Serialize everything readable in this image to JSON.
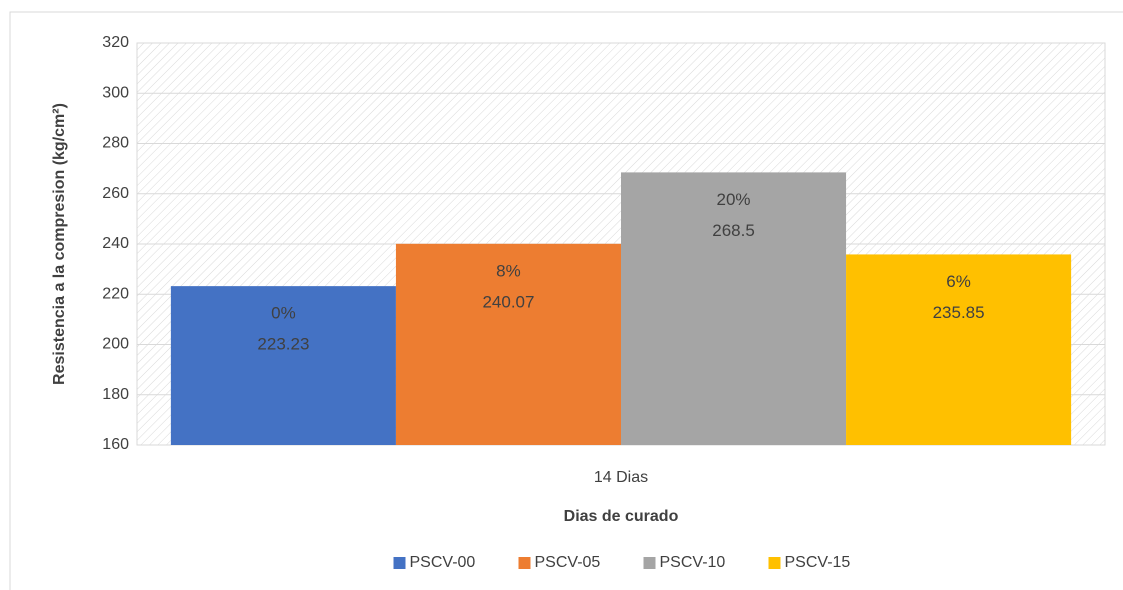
{
  "chart_data": {
    "type": "bar",
    "categories": [
      "14 Dias"
    ],
    "x_label": "Dias de curado",
    "y_label": "Resistencia a la compresion (kg/cm²)",
    "series": [
      {
        "name": "PSCV-00",
        "color": "#4472c4",
        "values": [
          223.23
        ],
        "percent_labels": [
          "0%"
        ]
      },
      {
        "name": "PSCV-05",
        "color": "#ed7d31",
        "values": [
          240.07
        ],
        "percent_labels": [
          "8%"
        ]
      },
      {
        "name": "PSCV-10",
        "color": "#a5a5a5",
        "values": [
          268.5
        ],
        "percent_labels": [
          "20%"
        ]
      },
      {
        "name": "PSCV-15",
        "color": "#ffc000",
        "values": [
          235.85
        ],
        "percent_labels": [
          "6%"
        ]
      }
    ],
    "ylim": [
      160,
      320
    ],
    "yticks": [
      160,
      180,
      200,
      220,
      240,
      260,
      280,
      300,
      320
    ],
    "grid": true,
    "legend": "bottom"
  }
}
